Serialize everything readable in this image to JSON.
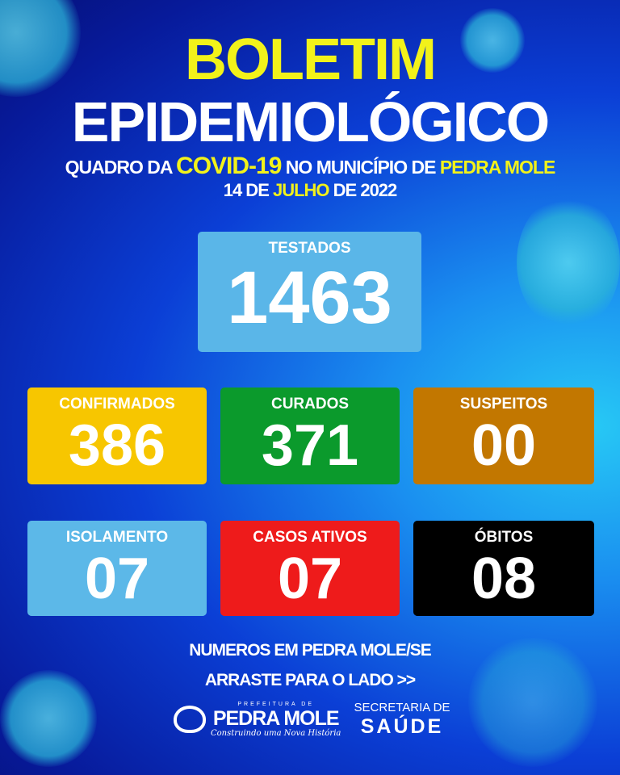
{
  "header": {
    "title_line1": "BOLETIM",
    "title_line2": "EPIDEMIOLÓGICO",
    "subtitle": {
      "part1": "QUADRO DA ",
      "highlight1": "COVID-19",
      "part2": " NO MUNICÍPIO DE ",
      "highlight2": "PEDRA MOLE"
    },
    "date": {
      "day": "14 DE ",
      "month": "JULHO",
      "year": " DE 2022"
    }
  },
  "stats": {
    "testados": {
      "label": "TESTADOS",
      "value": "1463",
      "color": "#5ab6e8"
    },
    "confirmados": {
      "label": "CONFIRMADOS",
      "value": "386",
      "color": "#f7c600"
    },
    "curados": {
      "label": "CURADOS",
      "value": "371",
      "color": "#0b9a2c"
    },
    "suspeitos": {
      "label": "SUSPEITOS",
      "value": "00",
      "color": "#c27700"
    },
    "isolamento": {
      "label": "ISOLAMENTO",
      "value": "07",
      "color": "#5cb8e8"
    },
    "casos_ativos": {
      "label": "CASOS ATIVOS",
      "value": "07",
      "color": "#ee1b1b"
    },
    "obitos": {
      "label": "ÓBITOS",
      "value": "08",
      "color": "#000000"
    }
  },
  "footer": {
    "line1": "NUMEROS EM PEDRA MOLE/SE",
    "line2": "ARRASTE PARA O LADO >>",
    "logo": {
      "top": "PREFEITURA DE",
      "name": "PEDRA MOLE",
      "tagline": "Construindo uma Nova História"
    },
    "secretaria": {
      "line1": "SECRETARIA DE",
      "line2": "SAÚDE"
    }
  }
}
